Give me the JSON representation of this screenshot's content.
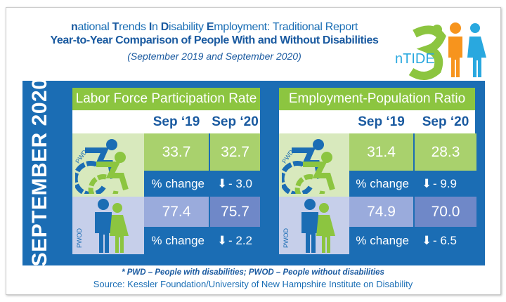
{
  "header": {
    "title_parts": [
      {
        "cap": "n",
        "rest": "ational "
      },
      {
        "cap": "T",
        "rest": "rends "
      },
      {
        "cap": "I",
        "rest": "n "
      },
      {
        "cap": "D",
        "rest": "isability "
      },
      {
        "cap": "E",
        "rest": "mployment: Traditional Report"
      }
    ],
    "subtitle": "Year-to-Year Comparison of People With and Without Disabilities",
    "period": "(September 2019  and September 2020)",
    "logo_text": "nTIDE"
  },
  "side_label": "SEPTEMBER 2020",
  "colors": {
    "blue": "#1b6db4",
    "green": "#8cc540",
    "pwd_bg": "#d8e9bd",
    "pwd_cell": "#a9d16d",
    "pwod_bg": "#c6cfea",
    "pwod_cell1": "#9aabdc",
    "pwod_cell2": "#6f88c8",
    "orange": "#f7941d",
    "light_blue": "#29a8df"
  },
  "panels": [
    {
      "title": "Labor Force Participation Rate",
      "col1": "Sep ‘19",
      "col2": "Sep ‘20",
      "pwd": {
        "label": "PWD",
        "sep19": "33.7",
        "sep20": "32.7",
        "change_label": "% change",
        "change": "- 3.0"
      },
      "pwod": {
        "label": "PWOD",
        "sep19": "77.4",
        "sep20": "75.7",
        "change_label": "% change",
        "change": "- 2.2"
      }
    },
    {
      "title": "Employment-Population Ratio",
      "col1": "Sep ‘19",
      "col2": "Sep ‘20",
      "pwd": {
        "label": "PWD",
        "sep19": "31.4",
        "sep20": "28.3",
        "change_label": "% change",
        "change": "- 9.9"
      },
      "pwod": {
        "label": "PWOD",
        "sep19": "74.9",
        "sep20": "70.0",
        "change_label": "%  change",
        "change": "- 6.5"
      }
    }
  ],
  "footer": {
    "note": "* PWD – People with disabilities;  PWOD – People without disabilities",
    "source": "Source: Kessler Foundation/University of New Hampshire Institute on Disability"
  }
}
